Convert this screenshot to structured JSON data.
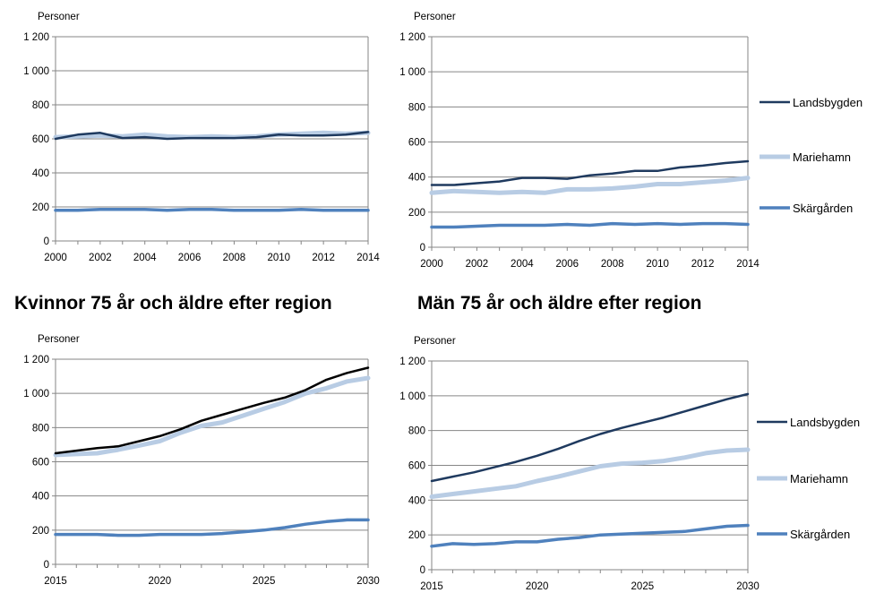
{
  "headings": {
    "women": "Kvinnor 75 år och äldre efter region",
    "men": "Män 75 år och äldre efter region"
  },
  "colors": {
    "landsbygden": "#1f3a5f",
    "mariehamn": "#b8cce4",
    "skargarden": "#4f81bd",
    "landsbygden_projection_women": "#000000"
  },
  "chart_data": [
    {
      "type": "line",
      "id": "women-history",
      "ylabel": "Personer",
      "ylim": [
        0,
        1200
      ],
      "yticks": [
        0,
        200,
        400,
        600,
        800,
        1000,
        1200
      ],
      "ytick_labels": [
        "0",
        "200",
        "400",
        "600",
        "800",
        "1 000",
        "1 200"
      ],
      "xlim": [
        2000,
        2014
      ],
      "xticks": [
        2000,
        2002,
        2004,
        2006,
        2008,
        2010,
        2012,
        2014
      ],
      "x": [
        2000,
        2001,
        2002,
        2003,
        2004,
        2005,
        2006,
        2007,
        2008,
        2009,
        2010,
        2011,
        2012,
        2013,
        2014
      ],
      "grid": "horizontal",
      "legend": "none",
      "series": [
        {
          "key": "mariehamn",
          "values": [
            610,
            615,
            620,
            615,
            625,
            615,
            610,
            615,
            610,
            615,
            625,
            630,
            635,
            630,
            635
          ]
        },
        {
          "key": "landsbygden",
          "values": [
            600,
            625,
            635,
            605,
            610,
            600,
            605,
            605,
            605,
            610,
            625,
            620,
            620,
            625,
            640
          ]
        },
        {
          "key": "skargarden",
          "values": [
            180,
            180,
            185,
            185,
            185,
            180,
            185,
            185,
            180,
            180,
            180,
            185,
            180,
            180,
            180
          ]
        }
      ]
    },
    {
      "type": "line",
      "id": "men-history",
      "ylabel": "Personer",
      "ylim": [
        0,
        1200
      ],
      "yticks": [
        0,
        200,
        400,
        600,
        800,
        1000,
        1200
      ],
      "ytick_labels": [
        "0",
        "200",
        "400",
        "600",
        "800",
        "1 000",
        "1 200"
      ],
      "xlim": [
        2000,
        2014
      ],
      "xticks": [
        2000,
        2002,
        2004,
        2006,
        2008,
        2010,
        2012,
        2014
      ],
      "x": [
        2000,
        2001,
        2002,
        2003,
        2004,
        2005,
        2006,
        2007,
        2008,
        2009,
        2010,
        2011,
        2012,
        2013,
        2014
      ],
      "grid": "horizontal",
      "legend": "right",
      "series": [
        {
          "key": "mariehamn",
          "name": "Mariehamn",
          "values": [
            310,
            320,
            315,
            310,
            315,
            310,
            330,
            330,
            335,
            345,
            360,
            360,
            370,
            380,
            395
          ]
        },
        {
          "key": "landsbygden",
          "name": "Landsbygden",
          "values": [
            355,
            355,
            365,
            375,
            395,
            395,
            390,
            410,
            420,
            435,
            435,
            455,
            465,
            480,
            490
          ]
        },
        {
          "key": "skargarden",
          "name": "Skärgården",
          "values": [
            115,
            115,
            120,
            125,
            125,
            125,
            130,
            125,
            135,
            130,
            135,
            130,
            135,
            135,
            130
          ]
        }
      ]
    },
    {
      "type": "line",
      "id": "women-projection",
      "ylabel": "Personer",
      "ylim": [
        0,
        1200
      ],
      "yticks": [
        0,
        200,
        400,
        600,
        800,
        1000,
        1200
      ],
      "ytick_labels": [
        "0",
        "200",
        "400",
        "600",
        "800",
        "1 000",
        "1 200"
      ],
      "xlim": [
        2015,
        2030
      ],
      "xticks": [
        2015,
        2020,
        2025,
        2030
      ],
      "x": [
        2015,
        2016,
        2017,
        2018,
        2019,
        2020,
        2021,
        2022,
        2023,
        2024,
        2025,
        2026,
        2027,
        2028,
        2029,
        2030
      ],
      "grid": "horizontal",
      "legend": "none",
      "series": [
        {
          "key": "mariehamn",
          "values": [
            640,
            645,
            650,
            670,
            695,
            720,
            770,
            810,
            830,
            870,
            910,
            950,
            1000,
            1030,
            1070,
            1090
          ]
        },
        {
          "key": "landsbygden_projection_women",
          "values": [
            650,
            665,
            680,
            690,
            720,
            750,
            790,
            840,
            875,
            910,
            945,
            975,
            1020,
            1080,
            1120,
            1150
          ]
        },
        {
          "key": "skargarden",
          "values": [
            175,
            175,
            175,
            170,
            170,
            175,
            175,
            175,
            180,
            190,
            200,
            215,
            235,
            250,
            260,
            260
          ]
        }
      ]
    },
    {
      "type": "line",
      "id": "men-projection",
      "ylabel": "Personer",
      "ylim": [
        0,
        1200
      ],
      "yticks": [
        0,
        200,
        400,
        600,
        800,
        1000,
        1200
      ],
      "ytick_labels": [
        "0",
        "200",
        "400",
        "600",
        "800",
        "1 000",
        "1 200"
      ],
      "xlim": [
        2015,
        2030
      ],
      "xticks": [
        2015,
        2020,
        2025,
        2030
      ],
      "x": [
        2015,
        2016,
        2017,
        2018,
        2019,
        2020,
        2021,
        2022,
        2023,
        2024,
        2025,
        2026,
        2027,
        2028,
        2029,
        2030
      ],
      "grid": "horizontal",
      "legend": "right",
      "series": [
        {
          "key": "mariehamn",
          "name": "Mariehamn",
          "values": [
            420,
            435,
            450,
            465,
            480,
            510,
            535,
            565,
            595,
            610,
            615,
            625,
            645,
            670,
            685,
            690
          ]
        },
        {
          "key": "landsbygden",
          "name": "Landsbygden",
          "values": [
            510,
            535,
            560,
            590,
            620,
            655,
            695,
            740,
            780,
            815,
            845,
            875,
            910,
            945,
            980,
            1010
          ]
        },
        {
          "key": "skargarden",
          "name": "Skärgården",
          "values": [
            135,
            150,
            145,
            150,
            160,
            160,
            175,
            185,
            200,
            205,
            210,
            215,
            220,
            235,
            250,
            255
          ]
        }
      ]
    }
  ]
}
